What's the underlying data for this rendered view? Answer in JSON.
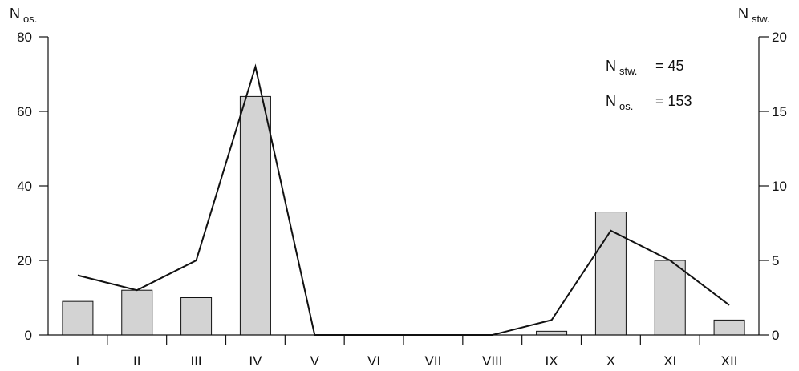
{
  "chart_data": {
    "type": "bar",
    "categories": [
      "I",
      "II",
      "III",
      "IV",
      "V",
      "VI",
      "VII",
      "VIII",
      "IX",
      "X",
      "XI",
      "XII"
    ],
    "y_left": {
      "label_main": "N",
      "label_sub": "os.",
      "ticks": [
        0,
        20,
        40,
        60,
        80
      ],
      "ylim": [
        0,
        80
      ]
    },
    "y_right": {
      "label_main": "N",
      "label_sub": "stw.",
      "ticks": [
        0,
        5,
        10,
        15,
        20
      ],
      "ylim": [
        0,
        20
      ]
    },
    "series": [
      {
        "name": "N os.",
        "type": "bar",
        "axis": "left",
        "values": [
          9,
          12,
          10,
          64,
          0,
          0,
          0,
          0,
          1,
          33,
          20,
          4
        ]
      },
      {
        "name": "N stw.",
        "type": "line",
        "axis": "right",
        "values": [
          4,
          3,
          5,
          18,
          0,
          0,
          0,
          0,
          1,
          7,
          5,
          2
        ]
      }
    ],
    "annotations": [
      {
        "main": "N",
        "sub": "stw.",
        "value": "= 45"
      },
      {
        "main": "N",
        "sub": "os.",
        "value": "= 153"
      }
    ]
  }
}
